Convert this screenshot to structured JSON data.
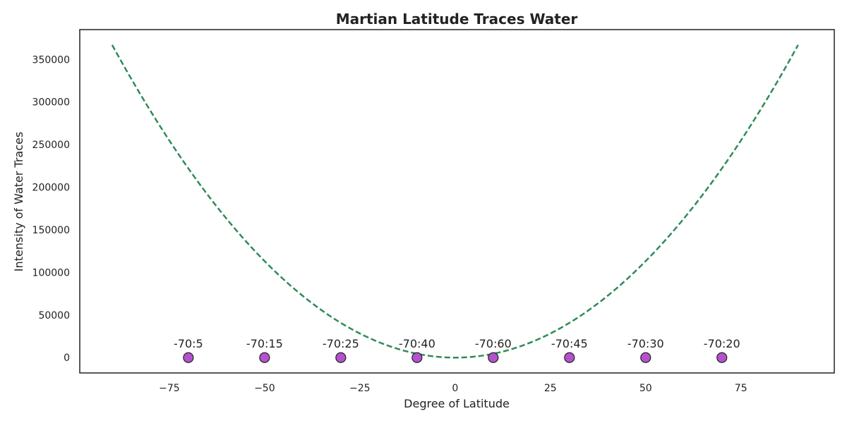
{
  "chart_data": {
    "type": "scatter",
    "title": "Martian Latitude Traces Water",
    "xlabel": "Degree of Latitude",
    "ylabel": "Intensity of Water Traces",
    "xlim": [
      -98.5,
      99.5
    ],
    "ylim": [
      -18000,
      385000
    ],
    "x_ticks": [
      -75,
      -50,
      -25,
      0,
      25,
      50,
      75
    ],
    "x_tick_labels": [
      "−75",
      "−50",
      "−25",
      "0",
      "25",
      "50",
      "75"
    ],
    "y_ticks": [
      0,
      50000,
      100000,
      150000,
      200000,
      250000,
      300000,
      350000
    ],
    "y_tick_labels": [
      "0",
      "50000",
      "100000",
      "150000",
      "200000",
      "250000",
      "300000",
      "350000"
    ],
    "grid": false,
    "series": [
      {
        "type": "scatter",
        "x": [
          -70,
          -50,
          -30,
          -10,
          10,
          30,
          50,
          70
        ],
        "y": [
          0,
          0,
          0,
          0,
          0,
          0,
          0,
          0
        ],
        "labels": [
          "-70:5",
          "-70:15",
          "-70:25",
          "-70:40",
          "-70:60",
          "-70:45",
          "-70:30",
          "-70:20"
        ],
        "color": "#b452cd"
      },
      {
        "type": "line",
        "style": "dashed",
        "color": "#2e8b57",
        "x_range": [
          -90,
          90
        ],
        "curve": "quadratic",
        "y_at_x_zero": 0,
        "y_at_x_90": 367000
      }
    ]
  }
}
